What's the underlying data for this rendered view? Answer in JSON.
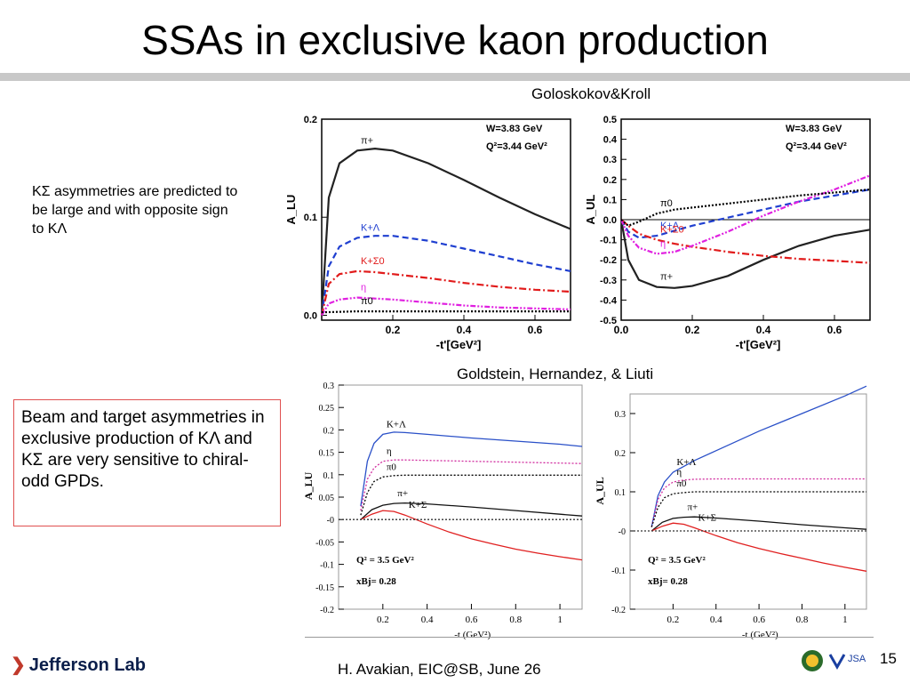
{
  "slide": {
    "title": "SSAs in exclusive kaon production",
    "source_top": "Goloskokov&Kroll",
    "source_bottom": "Goldstein, Hernandez, & Liuti",
    "note1": "KΣ asymmetries are predicted to be large and with opposite sign to KΛ",
    "note2": "Beam and target asymmetries in exclusive production of KΛ and KΣ are very sensitive to chiral-odd GPDs.",
    "footer": "H. Avakian, EIC@SB,  June 26",
    "page": "15",
    "lab_logo": "Jefferson Lab",
    "jsa_logo": "JSA"
  },
  "chart_data": [
    {
      "type": "line",
      "panel": "top-left",
      "ylabel": "A_LU",
      "xlabel": "-t'[GeV²]",
      "xlim": [
        0,
        0.7
      ],
      "ylim": [
        -0.005,
        0.2
      ],
      "xticks": [
        "0.2",
        "0.4",
        "0.6"
      ],
      "yticks": [
        "0.0",
        "0.1",
        "0.2"
      ],
      "annotations": [
        "W=3.83 GeV",
        "Q²=3.44 GeV²"
      ],
      "series": [
        {
          "name": "π+",
          "color": "#222222",
          "dash": "solid",
          "x": [
            0.0,
            0.02,
            0.05,
            0.1,
            0.15,
            0.2,
            0.3,
            0.4,
            0.5,
            0.6,
            0.7
          ],
          "y": [
            0.0,
            0.12,
            0.155,
            0.168,
            0.17,
            0.168,
            0.155,
            0.138,
            0.12,
            0.103,
            0.088
          ]
        },
        {
          "name": "K+Λ",
          "color": "#1f3fd0",
          "dash": "dash",
          "x": [
            0.0,
            0.02,
            0.05,
            0.1,
            0.15,
            0.2,
            0.3,
            0.4,
            0.5,
            0.6,
            0.7
          ],
          "y": [
            0.0,
            0.05,
            0.07,
            0.079,
            0.081,
            0.081,
            0.076,
            0.068,
            0.06,
            0.052,
            0.045
          ]
        },
        {
          "name": "K+Σ0",
          "color": "#e11b1b",
          "dash": "dashdot",
          "x": [
            0.0,
            0.02,
            0.05,
            0.1,
            0.15,
            0.2,
            0.3,
            0.4,
            0.5,
            0.6,
            0.7
          ],
          "y": [
            0.0,
            0.032,
            0.042,
            0.045,
            0.044,
            0.042,
            0.038,
            0.033,
            0.029,
            0.026,
            0.024
          ]
        },
        {
          "name": "η",
          "color": "#e020e0",
          "dash": "dashdotdot",
          "x": [
            0.0,
            0.02,
            0.05,
            0.1,
            0.15,
            0.2,
            0.3,
            0.4,
            0.5,
            0.6,
            0.7
          ],
          "y": [
            0.0,
            0.012,
            0.016,
            0.018,
            0.017,
            0.016,
            0.013,
            0.01,
            0.008,
            0.007,
            0.006
          ]
        },
        {
          "name": "π0",
          "color": "#000000",
          "dash": "dot",
          "x": [
            0.0,
            0.1,
            0.3,
            0.5,
            0.7
          ],
          "y": [
            0.003,
            0.004,
            0.004,
            0.004,
            0.004
          ]
        }
      ]
    },
    {
      "type": "line",
      "panel": "top-right",
      "ylabel": "A_UL",
      "xlabel": "-t'[GeV²]",
      "xlim": [
        0,
        0.7
      ],
      "ylim": [
        -0.5,
        0.5
      ],
      "xticks": [
        "0.0",
        "0.2",
        "0.4",
        "0.6"
      ],
      "yticks": [
        "-0.5",
        "-0.4",
        "-0.3",
        "-0.2",
        "-0.1",
        "0.0",
        "0.1",
        "0.2",
        "0.3",
        "0.4",
        "0.5"
      ],
      "annotations": [
        "W=3.83 GeV",
        "Q²=3.44 GeV²"
      ],
      "series": [
        {
          "name": "π+",
          "color": "#222222",
          "dash": "solid",
          "x": [
            0.0,
            0.02,
            0.05,
            0.1,
            0.15,
            0.2,
            0.3,
            0.4,
            0.5,
            0.6,
            0.7
          ],
          "y": [
            0.0,
            -0.2,
            -0.3,
            -0.335,
            -0.34,
            -0.33,
            -0.28,
            -0.2,
            -0.13,
            -0.08,
            -0.05
          ]
        },
        {
          "name": "K+Λ",
          "color": "#1f3fd0",
          "dash": "dash",
          "x": [
            0.0,
            0.02,
            0.05,
            0.1,
            0.15,
            0.2,
            0.3,
            0.4,
            0.5,
            0.6,
            0.7
          ],
          "y": [
            0.0,
            -0.06,
            -0.09,
            -0.08,
            -0.055,
            -0.03,
            0.01,
            0.05,
            0.09,
            0.12,
            0.15
          ]
        },
        {
          "name": "K+Σ0",
          "color": "#e11b1b",
          "dash": "dashdot",
          "x": [
            0.0,
            0.02,
            0.05,
            0.1,
            0.15,
            0.2,
            0.3,
            0.4,
            0.5,
            0.6,
            0.7
          ],
          "y": [
            0.0,
            -0.03,
            -0.07,
            -0.1,
            -0.12,
            -0.135,
            -0.16,
            -0.18,
            -0.195,
            -0.205,
            -0.215
          ]
        },
        {
          "name": "η",
          "color": "#e020e0",
          "dash": "dashdotdot",
          "x": [
            0.0,
            0.02,
            0.05,
            0.1,
            0.15,
            0.2,
            0.3,
            0.4,
            0.5,
            0.6,
            0.7
          ],
          "y": [
            0.0,
            -0.08,
            -0.14,
            -0.17,
            -0.16,
            -0.13,
            -0.06,
            0.02,
            0.09,
            0.15,
            0.22
          ]
        },
        {
          "name": "π0",
          "color": "#000000",
          "dash": "dot",
          "x": [
            0.0,
            0.02,
            0.05,
            0.1,
            0.15,
            0.2,
            0.3,
            0.4,
            0.5,
            0.6,
            0.7
          ],
          "y": [
            0.0,
            -0.03,
            -0.01,
            0.03,
            0.05,
            0.06,
            0.08,
            0.1,
            0.12,
            0.135,
            0.15
          ]
        }
      ]
    },
    {
      "type": "line",
      "panel": "bottom-left",
      "ylabel": "A_LU",
      "xlabel": "-t (GeV²)",
      "xlim": [
        0,
        1.1
      ],
      "ylim": [
        -0.2,
        0.3
      ],
      "xticks": [
        "0.2",
        "0.4",
        "0.6",
        "0.8",
        "1"
      ],
      "yticks": [
        "-0.2",
        "-0.15",
        "-0.1",
        "-0.05",
        "-0",
        "0.05",
        "0.1",
        "0.15",
        "0.2",
        "0.25",
        "0.3"
      ],
      "annotations": [
        "Q² = 3.5 GeV²",
        "xBj= 0.28"
      ],
      "series": [
        {
          "name": "K+Λ",
          "color": "#2a50c8",
          "dash": "solid",
          "x": [
            0.1,
            0.13,
            0.16,
            0.2,
            0.25,
            0.3,
            0.4,
            0.6,
            0.8,
            1.0,
            1.1
          ],
          "y": [
            0.03,
            0.13,
            0.17,
            0.19,
            0.195,
            0.194,
            0.19,
            0.182,
            0.175,
            0.168,
            0.163
          ]
        },
        {
          "name": "η",
          "color": "#d02a9e",
          "dash": "dot",
          "x": [
            0.1,
            0.13,
            0.16,
            0.2,
            0.25,
            0.3,
            0.4,
            0.6,
            0.8,
            1.0,
            1.1
          ],
          "y": [
            0.02,
            0.09,
            0.115,
            0.13,
            0.133,
            0.133,
            0.132,
            0.13,
            0.128,
            0.126,
            0.125
          ]
        },
        {
          "name": "π0",
          "color": "#000000",
          "dash": "dot",
          "x": [
            0.1,
            0.13,
            0.16,
            0.2,
            0.25,
            0.3,
            0.4,
            0.6,
            0.8,
            1.0,
            1.1
          ],
          "y": [
            0.01,
            0.06,
            0.085,
            0.095,
            0.098,
            0.099,
            0.099,
            0.099,
            0.099,
            0.099,
            0.099
          ]
        },
        {
          "name": "π+",
          "color": "#111111",
          "dash": "solid",
          "x": [
            0.1,
            0.15,
            0.2,
            0.25,
            0.3,
            0.4,
            0.6,
            0.8,
            1.0,
            1.1
          ],
          "y": [
            0.0,
            0.022,
            0.032,
            0.036,
            0.037,
            0.035,
            0.028,
            0.02,
            0.012,
            0.008
          ]
        },
        {
          "name": "K+Σ",
          "color": "#e02020",
          "dash": "solid",
          "x": [
            0.1,
            0.15,
            0.2,
            0.25,
            0.3,
            0.4,
            0.5,
            0.6,
            0.7,
            0.8,
            0.9,
            1.0,
            1.1
          ],
          "y": [
            0.0,
            0.012,
            0.02,
            0.018,
            0.01,
            -0.01,
            -0.028,
            -0.043,
            -0.055,
            -0.066,
            -0.075,
            -0.083,
            -0.09
          ]
        },
        {
          "name": "",
          "color": "#333333",
          "dash": "dot",
          "x": [
            0.0,
            1.1
          ],
          "y": [
            0.0,
            0.0
          ]
        }
      ]
    },
    {
      "type": "line",
      "panel": "bottom-right",
      "ylabel": "A_UL",
      "xlabel": "-t (GeV²)",
      "xlim": [
        0,
        1.1
      ],
      "ylim": [
        -0.2,
        0.35
      ],
      "xticks": [
        "0.2",
        "0.4",
        "0.6",
        "0.8",
        "1"
      ],
      "yticks": [
        "-0.2",
        "-0.1",
        "-0",
        "0.1",
        "0.2",
        "0.3"
      ],
      "annotations": [
        "Q² = 3.5 GeV²",
        "xBj= 0.28"
      ],
      "series": [
        {
          "name": "K+Λ",
          "color": "#2a50c8",
          "dash": "solid",
          "x": [
            0.1,
            0.13,
            0.16,
            0.2,
            0.25,
            0.3,
            0.4,
            0.6,
            0.8,
            1.0,
            1.1
          ],
          "y": [
            0.01,
            0.09,
            0.125,
            0.15,
            0.165,
            0.18,
            0.205,
            0.255,
            0.3,
            0.345,
            0.37
          ]
        },
        {
          "name": "η",
          "color": "#d02a9e",
          "dash": "dot",
          "x": [
            0.1,
            0.13,
            0.16,
            0.2,
            0.25,
            0.3,
            0.4,
            0.6,
            0.8,
            1.0,
            1.1
          ],
          "y": [
            0.01,
            0.08,
            0.11,
            0.125,
            0.13,
            0.132,
            0.133,
            0.133,
            0.133,
            0.133,
            0.133
          ]
        },
        {
          "name": "π0",
          "color": "#000000",
          "dash": "dot",
          "x": [
            0.1,
            0.13,
            0.16,
            0.2,
            0.25,
            0.3,
            0.4,
            0.6,
            0.8,
            1.0,
            1.1
          ],
          "y": [
            0.01,
            0.06,
            0.085,
            0.095,
            0.098,
            0.1,
            0.1,
            0.1,
            0.1,
            0.1,
            0.1
          ]
        },
        {
          "name": "π+",
          "color": "#111111",
          "dash": "solid",
          "x": [
            0.1,
            0.15,
            0.2,
            0.25,
            0.3,
            0.4,
            0.6,
            0.8,
            1.0,
            1.1
          ],
          "y": [
            0.0,
            0.022,
            0.032,
            0.035,
            0.036,
            0.033,
            0.025,
            0.016,
            0.008,
            0.004
          ]
        },
        {
          "name": "K+Σ",
          "color": "#e02020",
          "dash": "solid",
          "x": [
            0.1,
            0.15,
            0.2,
            0.25,
            0.3,
            0.4,
            0.5,
            0.6,
            0.7,
            0.8,
            0.9,
            1.0,
            1.1
          ],
          "y": [
            0.0,
            0.012,
            0.02,
            0.017,
            0.008,
            -0.012,
            -0.03,
            -0.045,
            -0.058,
            -0.07,
            -0.082,
            -0.093,
            -0.103
          ]
        },
        {
          "name": "",
          "color": "#333333",
          "dash": "dot",
          "x": [
            0.0,
            1.1
          ],
          "y": [
            0.0,
            0.0
          ]
        }
      ]
    }
  ]
}
